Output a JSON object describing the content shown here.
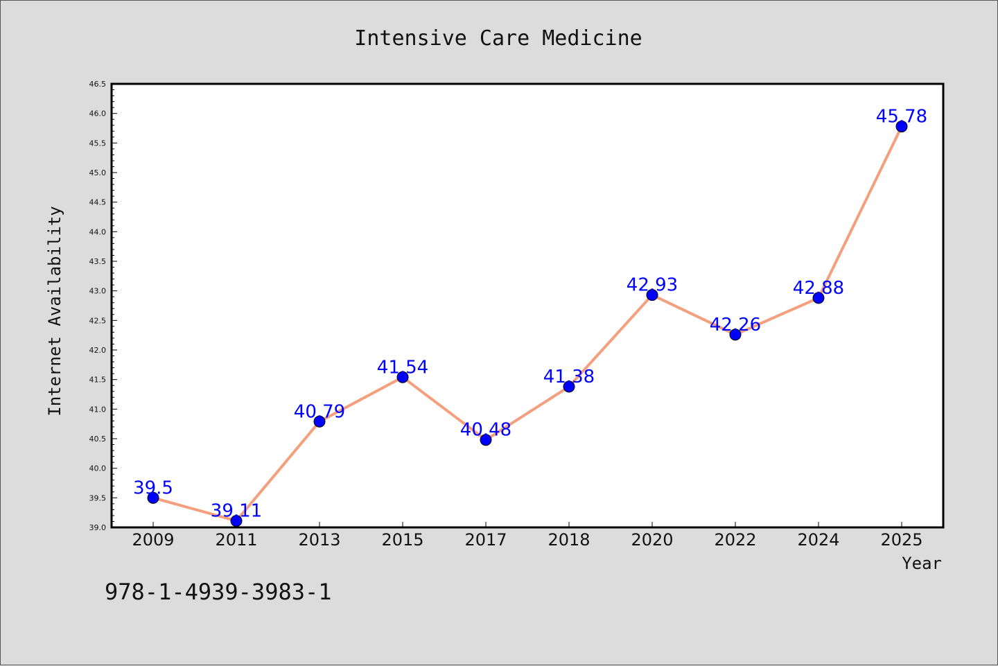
{
  "chart_data": {
    "type": "line",
    "title": "Intensive Care Medicine",
    "xlabel": "Year",
    "ylabel": "Internet Availability",
    "categories": [
      "2009",
      "2011",
      "2013",
      "2015",
      "2017",
      "2018",
      "2020",
      "2022",
      "2024",
      "2025"
    ],
    "values": [
      39.5,
      39.11,
      40.79,
      41.54,
      40.48,
      41.38,
      42.93,
      42.26,
      42.88,
      45.78
    ],
    "data_labels": [
      "39.5",
      "39.11",
      "40.79",
      "41.54",
      "40.48",
      "41.38",
      "42.93",
      "42.26",
      "42.88",
      "45.78"
    ],
    "ylim": [
      39.0,
      46.5
    ],
    "yticks": [
      "39.0",
      "39.5",
      "40.0",
      "40.5",
      "41.0",
      "41.5",
      "42.0",
      "42.5",
      "43.0",
      "43.5",
      "44.0",
      "44.5",
      "45.0",
      "45.5",
      "46.0",
      "46.5"
    ],
    "grid": false,
    "legend": "none",
    "colors": {
      "line": "#f4a07e",
      "marker": "#0000ff",
      "data_label": "#0000ff",
      "plot_background": "#ffffff",
      "figure_background": "#dcdcdc"
    }
  },
  "footer": {
    "isbn": "978-1-4939-3983-1"
  }
}
